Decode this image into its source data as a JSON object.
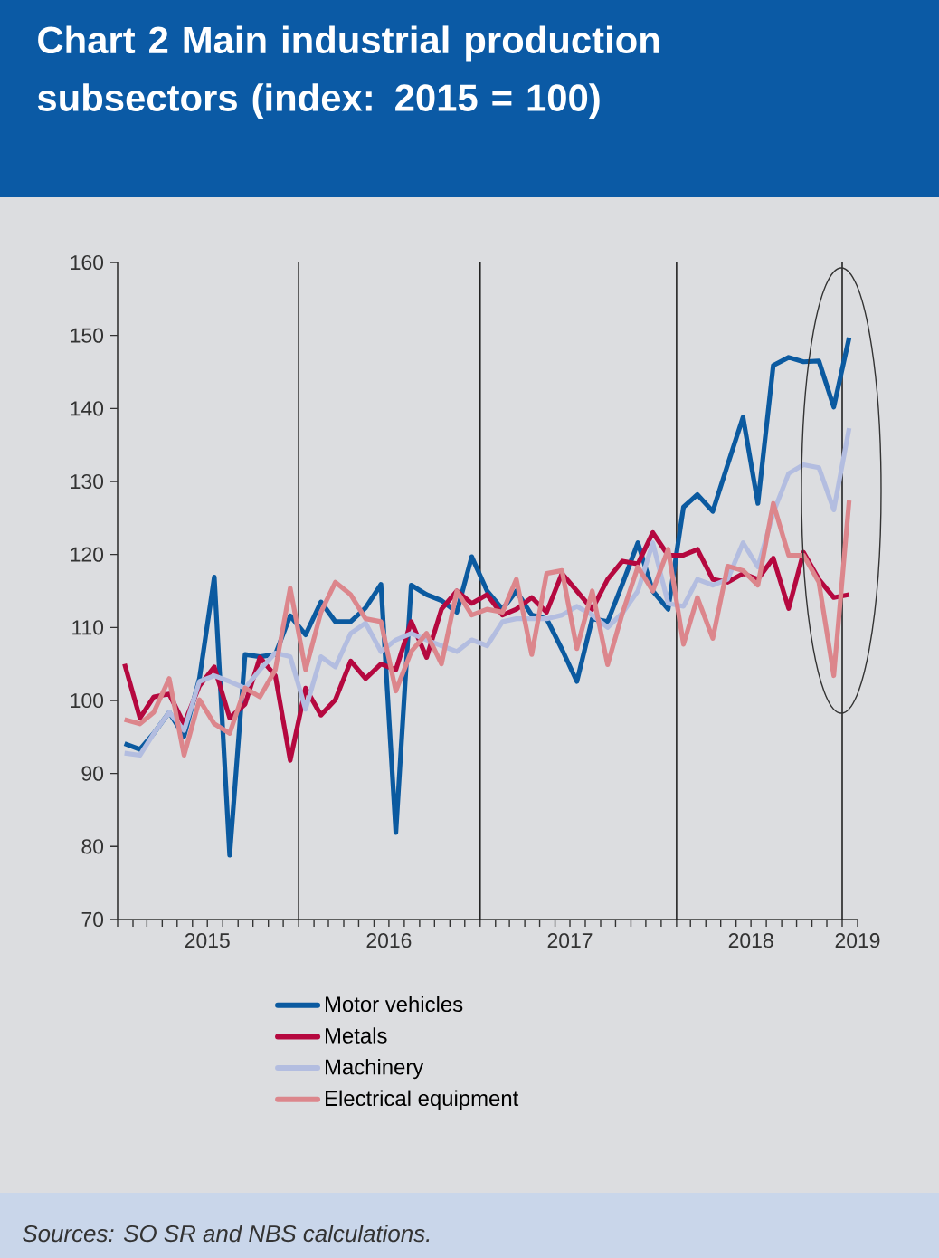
{
  "chart_data": {
    "type": "line",
    "title": "Chart 2 Main industrial production subsectors (index: 2015 = 100)",
    "annotations": [
      "Sources: SO SR and NBS calculations."
    ],
    "x": [
      "2015-01-15",
      "2015-02-15",
      "2015-03-15",
      "2015-04-15",
      "2015-05-15",
      "2015-06-15",
      "2015-07-15",
      "2015-08-15",
      "2015-09-15",
      "2015-10-15",
      "2015-11-15",
      "2015-12-15",
      "2016-01-15",
      "2016-02-15",
      "2016-03-15",
      "2016-04-15",
      "2016-05-15",
      "2016-06-15",
      "2016-07-15",
      "2016-08-15",
      "2016-09-15",
      "2016-10-15",
      "2016-11-15",
      "2016-12-15",
      "2017-01-15",
      "2017-02-15",
      "2017-03-15",
      "2017-04-15",
      "2017-05-15",
      "2017-06-15",
      "2017-07-15",
      "2017-08-15",
      "2017-09-15",
      "2017-10-15",
      "2017-11-15",
      "2017-12-15",
      "2018-01-15",
      "2018-02-15",
      "2018-03-15",
      "2018-04-15",
      "2018-05-15",
      "2018-06-15",
      "2018-07-15",
      "2018-08-15",
      "2018-09-15",
      "2018-10-15",
      "2018-11-15",
      "2018-12-15",
      "2019-01-15"
    ],
    "series": [
      {
        "name": "Motor vehicles",
        "color": "#0b5aa0",
        "values": [
          94.1,
          93.3,
          95.5,
          98.4,
          95.1,
          103,
          116.9,
          78.8,
          106.3,
          106,
          106.3,
          111.6,
          109,
          113.5,
          110.8,
          110.8,
          112.7,
          115.9,
          81.9,
          115.8,
          114.5,
          113.7,
          112.1,
          119.7,
          115,
          112.5,
          115,
          111.7,
          111.2,
          107,
          102.6,
          111.2,
          110.8,
          116,
          121.6,
          115,
          112.5,
          126.5,
          128.2,
          125.9,
          132.3,
          138.8,
          127,
          145.9,
          147,
          146.4,
          146.5,
          140.2,
          149.7
        ]
      },
      {
        "name": "Metals",
        "color": "#b5083f",
        "values": [
          105,
          97.6,
          100.5,
          100.9,
          96.8,
          102,
          104.6,
          97.6,
          99.5,
          105.9,
          103.4,
          91.8,
          101.7,
          98,
          100.1,
          105.4,
          103,
          105,
          104.2,
          110.8,
          105.9,
          112.5,
          115,
          113.3,
          114.5,
          111.7,
          112.5,
          114.1,
          112.1,
          117.4,
          115,
          112.5,
          116.6,
          119.1,
          118.7,
          123,
          119.9,
          119.9,
          120.7,
          116.6,
          116.2,
          117.4,
          116.6,
          119.5,
          112.6,
          120.3,
          116.6,
          114.1,
          114.5
        ]
      },
      {
        "name": "Machinery",
        "color": "#b3bde0",
        "values": [
          92.8,
          92.5,
          95.5,
          98.4,
          95.9,
          102.6,
          103.4,
          102.6,
          101.7,
          104.2,
          106.5,
          106,
          98.8,
          106,
          104.6,
          109.2,
          110.6,
          106.7,
          108.3,
          109.2,
          108.3,
          107.5,
          106.7,
          108.3,
          107.5,
          110.8,
          111.2,
          111.2,
          111.2,
          111.7,
          112.9,
          111.7,
          110,
          112,
          115,
          121.6,
          113.3,
          112.9,
          116.6,
          115.8,
          116.6,
          121.6,
          118.3,
          125.7,
          131.1,
          132.3,
          131.9,
          126.1,
          137.3
        ]
      },
      {
        "name": "Electrical equipment",
        "color": "#dc868c",
        "values": [
          97.4,
          96.8,
          98.4,
          103,
          92.5,
          100.1,
          96.8,
          95.5,
          101.7,
          100.5,
          104.2,
          115.4,
          104.2,
          112.1,
          116.2,
          114.5,
          111.2,
          110.8,
          101.3,
          106.7,
          109.2,
          105,
          115,
          111.7,
          112.5,
          112.1,
          116.6,
          106.3,
          117.4,
          117.8,
          107.1,
          115,
          104.9,
          112,
          118.3,
          115,
          120.7,
          107.7,
          114.1,
          108.5,
          118.4,
          117.8,
          115.8,
          127,
          119.9,
          119.9,
          116.2,
          103.4,
          127.4
        ]
      }
    ],
    "xlim": [
      "2015-01-01",
      "2019-02-01"
    ],
    "xticks": [
      {
        "value": "2015-07-01",
        "label": "2015"
      },
      {
        "value": "2016-07-01",
        "label": "2016"
      },
      {
        "value": "2017-07-01",
        "label": "2017"
      },
      {
        "value": "2018-07-01",
        "label": "2018"
      },
      {
        "value": "2019-02-01",
        "label": "2019"
      },
      {
        "value": "2015-01-01",
        "label": null
      },
      {
        "value": "2015-02-01",
        "label": null
      },
      {
        "value": "2015-03-01",
        "label": null
      },
      {
        "value": "2015-04-01",
        "label": null
      },
      {
        "value": "2015-05-01",
        "label": null
      },
      {
        "value": "2015-06-01",
        "label": null
      },
      {
        "value": "2015-07-01",
        "label": null
      },
      {
        "value": "2015-08-01",
        "label": null
      },
      {
        "value": "2015-09-01",
        "label": null
      },
      {
        "value": "2015-10-01",
        "label": null
      },
      {
        "value": "2015-11-01",
        "label": null
      },
      {
        "value": "2015-12-01",
        "label": null
      },
      {
        "value": "2016-01-01",
        "label": null
      },
      {
        "value": "2016-02-01",
        "label": null
      },
      {
        "value": "2016-03-01",
        "label": null
      },
      {
        "value": "2016-04-01",
        "label": null
      },
      {
        "value": "2016-05-01",
        "label": null
      },
      {
        "value": "2016-06-01",
        "label": null
      },
      {
        "value": "2016-07-01",
        "label": null
      },
      {
        "value": "2016-08-01",
        "label": null
      },
      {
        "value": "2016-09-01",
        "label": null
      },
      {
        "value": "2016-10-01",
        "label": null
      },
      {
        "value": "2016-11-01",
        "label": null
      },
      {
        "value": "2016-12-01",
        "label": null
      },
      {
        "value": "2017-01-01",
        "label": null
      },
      {
        "value": "2017-02-01",
        "label": null
      },
      {
        "value": "2017-03-01",
        "label": null
      },
      {
        "value": "2017-04-01",
        "label": null
      },
      {
        "value": "2017-05-01",
        "label": null
      },
      {
        "value": "2017-06-01",
        "label": null
      },
      {
        "value": "2017-07-01",
        "label": null
      },
      {
        "value": "2017-08-01",
        "label": null
      },
      {
        "value": "2017-09-01",
        "label": null
      },
      {
        "value": "2017-10-01",
        "label": null
      },
      {
        "value": "2017-11-01",
        "label": null
      },
      {
        "value": "2017-12-01",
        "label": null
      },
      {
        "value": "2018-01-01",
        "label": null
      },
      {
        "value": "2018-02-01",
        "label": null
      },
      {
        "value": "2018-03-01",
        "label": null
      },
      {
        "value": "2018-04-01",
        "label": null
      },
      {
        "value": "2018-05-01",
        "label": null
      },
      {
        "value": "2018-06-01",
        "label": null
      },
      {
        "value": "2018-07-01",
        "label": null
      },
      {
        "value": "2018-08-01",
        "label": null
      },
      {
        "value": "2018-09-01",
        "label": null
      },
      {
        "value": "2018-10-01",
        "label": null
      },
      {
        "value": "2018-11-01",
        "label": null
      },
      {
        "value": "2018-12-01",
        "label": null
      },
      {
        "value": "2019-01-01",
        "label": null
      },
      {
        "value": "2019-02-01",
        "label": null
      }
    ],
    "ylim": [
      70,
      160
    ],
    "yticks": [
      70,
      80,
      90,
      100,
      110,
      120,
      130,
      140,
      150,
      160
    ],
    "ref_lines": [
      {
        "axis": "x",
        "value": "2016-01-01"
      },
      {
        "axis": "x",
        "value": "2017-01-01"
      },
      {
        "axis": "x",
        "value": "2018-02-01"
      },
      {
        "axis": "x",
        "value": "2019-01-01"
      }
    ],
    "legend": "bottom"
  }
}
